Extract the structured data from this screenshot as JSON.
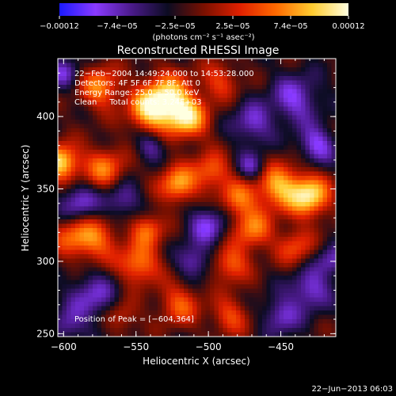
{
  "chart_data": {
    "type": "heatmap",
    "title": "Reconstructed RHESSI Image",
    "xlabel": "Heliocentric X (arcsec)",
    "ylabel": "Heliocentric Y (arcsec)",
    "xlim": [
      -604,
      -412
    ],
    "ylim": [
      248,
      440
    ],
    "x_ticks": [
      -600,
      -550,
      -500,
      -450
    ],
    "x_tick_labels": [
      "−600",
      "−550",
      "−500",
      "−450"
    ],
    "y_ticks": [
      250,
      300,
      350,
      400
    ],
    "y_tick_labels": [
      "250",
      "300",
      "350",
      "400"
    ],
    "colorbar": {
      "range": [
        -0.00012,
        0.00012
      ],
      "tick_labels": [
        "−0.00012",
        "−7.4e−05",
        "−2.5e−05",
        "2.5e−05",
        "7.4e−05",
        "0.00012"
      ],
      "unit_label": "(photons cm⁻² s⁻¹ asec⁻²)",
      "colors": [
        "#1a1aff",
        "#8a3aff",
        "#4a1a8a",
        "#0c0c22",
        "#7a1000",
        "#e02000",
        "#ff6a00",
        "#ffcc30",
        "#ffffe0"
      ]
    },
    "annotations": [
      "22−Feb−2004 14:49:24.000 to 14:53:28.000",
      "Detectors: 4F 5F 6F 7F 8F, Att 0",
      "Energy Range: 25.0 − 50.0 keV",
      "Clean     Total counts: 3.24E+03"
    ],
    "peak_label": "Position of Peak = [−604,364]",
    "peak": {
      "x": -604,
      "y": 364
    },
    "blobs": [
      {
        "x": -528,
        "y": 412,
        "v": 1.0,
        "s": 12
      },
      {
        "x": -514,
        "y": 398,
        "v": 0.8,
        "s": 10
      },
      {
        "x": -542,
        "y": 404,
        "v": 0.7,
        "s": 10
      },
      {
        "x": -575,
        "y": 420,
        "v": 0.7,
        "s": 10
      },
      {
        "x": -602,
        "y": 368,
        "v": 1.0,
        "s": 9
      },
      {
        "x": -572,
        "y": 364,
        "v": 0.65,
        "s": 10
      },
      {
        "x": -521,
        "y": 353,
        "v": 0.8,
        "s": 9
      },
      {
        "x": -498,
        "y": 362,
        "v": 0.6,
        "s": 9
      },
      {
        "x": -430,
        "y": 345,
        "v": 1.0,
        "s": 10
      },
      {
        "x": -452,
        "y": 352,
        "v": 0.8,
        "s": 11
      },
      {
        "x": -480,
        "y": 343,
        "v": 0.6,
        "s": 9
      },
      {
        "x": -578,
        "y": 315,
        "v": 0.6,
        "s": 11
      },
      {
        "x": -548,
        "y": 298,
        "v": 0.7,
        "s": 10
      },
      {
        "x": -542,
        "y": 322,
        "v": 0.6,
        "s": 8
      },
      {
        "x": -470,
        "y": 322,
        "v": 0.65,
        "s": 10
      },
      {
        "x": -485,
        "y": 298,
        "v": 0.6,
        "s": 9
      },
      {
        "x": -440,
        "y": 310,
        "v": 0.5,
        "s": 9
      },
      {
        "x": -520,
        "y": 270,
        "v": 0.55,
        "s": 10
      },
      {
        "x": -485,
        "y": 262,
        "v": 0.5,
        "s": 9
      },
      {
        "x": -560,
        "y": 262,
        "v": 0.4,
        "s": 8
      },
      {
        "x": -595,
        "y": 318,
        "v": 0.5,
        "s": 10
      },
      {
        "x": -492,
        "y": 425,
        "v": 0.45,
        "s": 9
      },
      {
        "x": -440,
        "y": 412,
        "v": -0.55,
        "s": 12
      },
      {
        "x": -470,
        "y": 395,
        "v": -0.5,
        "s": 10
      },
      {
        "x": -425,
        "y": 380,
        "v": -0.6,
        "s": 9
      },
      {
        "x": -590,
        "y": 340,
        "v": -0.55,
        "s": 10
      },
      {
        "x": -560,
        "y": 342,
        "v": -0.45,
        "s": 9
      },
      {
        "x": -500,
        "y": 325,
        "v": -0.55,
        "s": 10
      },
      {
        "x": -510,
        "y": 300,
        "v": -0.5,
        "s": 8
      },
      {
        "x": -430,
        "y": 280,
        "v": -0.55,
        "s": 10
      },
      {
        "x": -580,
        "y": 275,
        "v": -0.5,
        "s": 12
      },
      {
        "x": -450,
        "y": 262,
        "v": -0.5,
        "s": 9
      },
      {
        "x": -600,
        "y": 430,
        "v": -0.45,
        "s": 8
      },
      {
        "x": -470,
        "y": 365,
        "v": -0.5,
        "s": 7
      },
      {
        "x": -540,
        "y": 380,
        "v": -0.4,
        "s": 7
      },
      {
        "x": -415,
        "y": 300,
        "v": -0.45,
        "s": 8
      },
      {
        "x": -598,
        "y": 255,
        "v": -0.4,
        "s": 8
      }
    ]
  },
  "footer": {
    "date": "22−Jun−2013 06:03"
  }
}
